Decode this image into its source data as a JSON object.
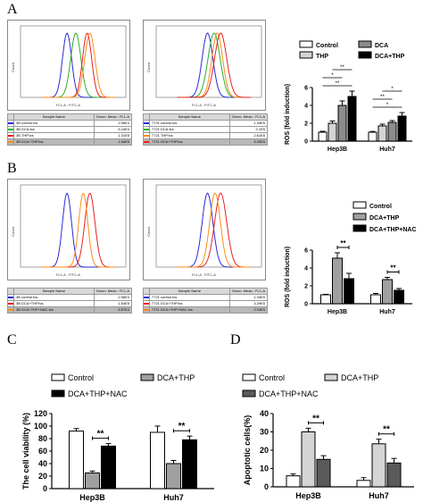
{
  "panels": {
    "A": "A",
    "B": "B",
    "C": "C",
    "D": "D"
  },
  "flow": {
    "axis_x": "FL1-A : FITC-A",
    "axis_y": "Count",
    "header_sample": "Sample Name",
    "header_geo": "Geom. Mean : FL1-A",
    "A_left": {
      "colors": [
        "#2a2ad6",
        "#2bb02b",
        "#e82020",
        "#ff8c1a"
      ],
      "rows": [
        {
          "name": "3B control.fcs",
          "value": "2.56E4"
        },
        {
          "name": "3B DCA.fcs",
          "value": "5.24E4"
        },
        {
          "name": "3B THP.fcs",
          "value": "1.31E5"
        },
        {
          "name": "3B DCA+THP.fcs",
          "value": "1.64E5"
        }
      ]
    },
    "A_right": {
      "colors": [
        "#2a2ad6",
        "#2bb02b",
        "#ff8c1a",
        "#e82020"
      ],
      "rows": [
        {
          "name": "7721 control.fcs",
          "value": "1.34E5"
        },
        {
          "name": "7721 DCA.fcs",
          "value": "2.1E5"
        },
        {
          "name": "7721 THP.fcs",
          "value": "2.61E5"
        },
        {
          "name": "7721 DCA+THP.fcs",
          "value": "3.29E5"
        }
      ]
    },
    "B_left": {
      "colors": [
        "#2a2ad6",
        "#e82020",
        "#ff8c1a"
      ],
      "rows": [
        {
          "name": "3B control.fcs",
          "value": "2.56E4"
        },
        {
          "name": "3B DCA+THP.fcs",
          "value": "1.64E5"
        },
        {
          "name": "3B DCA+THP+NAC.fcs",
          "value": "9.57E4"
        }
      ]
    },
    "B_right": {
      "colors": [
        "#2a2ad6",
        "#e82020",
        "#ff8c1a"
      ],
      "rows": [
        {
          "name": "7721 control.fcs",
          "value": "1.34E5"
        },
        {
          "name": "7721 DCA+THP.fcs",
          "value": "3.29E5"
        },
        {
          "name": "7721 DCA+THP+NAC.fcs",
          "value": "2.24E5"
        }
      ]
    }
  },
  "chart_data": [
    {
      "id": "A",
      "type": "bar",
      "ylabel": "ROS (fold induction)",
      "ylim": [
        0,
        6
      ],
      "yticks": [
        0,
        2,
        4,
        6
      ],
      "categories": [
        "Hep3B",
        "Huh7"
      ],
      "series": [
        {
          "name": "Control",
          "color": "#ffffff",
          "values": [
            1.0,
            1.0
          ],
          "errors": [
            0.1,
            0.08
          ]
        },
        {
          "name": "THP",
          "color": "#d4d4d4",
          "values": [
            2.0,
            1.7
          ],
          "errors": [
            0.25,
            0.2
          ]
        },
        {
          "name": "DCA",
          "color": "#8c8c8c",
          "values": [
            4.0,
            2.1
          ],
          "errors": [
            0.5,
            0.2
          ]
        },
        {
          "name": "DCA+THP",
          "color": "#000000",
          "values": [
            5.0,
            2.8
          ],
          "errors": [
            0.6,
            0.4
          ]
        }
      ],
      "legend_order": [
        "Control",
        "DCA",
        "THP",
        "DCA+THP"
      ],
      "significance": "**  *"
    },
    {
      "id": "B",
      "type": "bar",
      "ylabel": "ROS (fold induction)",
      "ylim": [
        0,
        6
      ],
      "yticks": [
        0,
        2,
        4,
        6
      ],
      "categories": [
        "Hep3B",
        "Huh7"
      ],
      "series": [
        {
          "name": "Control",
          "color": "#ffffff",
          "values": [
            1.0,
            1.0
          ],
          "errors": [
            0.05,
            0.15
          ]
        },
        {
          "name": "DCA+THP",
          "color": "#a0a0a0",
          "values": [
            5.1,
            2.7
          ],
          "errors": [
            0.6,
            0.25
          ]
        },
        {
          "name": "DCA+THP+NAC",
          "color": "#000000",
          "values": [
            2.8,
            1.5
          ],
          "errors": [
            0.6,
            0.2
          ]
        }
      ],
      "significance": "**"
    },
    {
      "id": "C",
      "type": "bar",
      "ylabel": "The cell viability (%)",
      "ylim": [
        0,
        120
      ],
      "yticks": [
        0,
        20,
        40,
        60,
        80,
        100,
        120
      ],
      "categories": [
        "Hep3B",
        "Huh7"
      ],
      "series": [
        {
          "name": "Control",
          "color": "#ffffff",
          "values": [
            92,
            90
          ],
          "errors": [
            4,
            10
          ]
        },
        {
          "name": "DCA+THP",
          "color": "#a0a0a0",
          "values": [
            25,
            40
          ],
          "errors": [
            3,
            5
          ]
        },
        {
          "name": "DCA+THP+NAC",
          "color": "#000000",
          "values": [
            68,
            78
          ],
          "errors": [
            4,
            6
          ]
        }
      ],
      "significance": "**"
    },
    {
      "id": "D",
      "type": "bar",
      "ylabel": "Apoptotic cells(%)",
      "ylim": [
        0,
        40
      ],
      "yticks": [
        0,
        10,
        20,
        30,
        40
      ],
      "categories": [
        "Hep3B",
        "Huh7"
      ],
      "series": [
        {
          "name": "Control",
          "color": "#ffffff",
          "values": [
            6,
            3.5
          ],
          "errors": [
            1,
            1.5
          ]
        },
        {
          "name": "DCA+THP",
          "color": "#d4d4d4",
          "values": [
            30,
            23.5
          ],
          "errors": [
            2,
            2.5
          ]
        },
        {
          "name": "DCA+THP+NAC",
          "color": "#5a5a5a",
          "values": [
            15,
            13
          ],
          "errors": [
            2,
            2.5
          ]
        }
      ],
      "significance": "**"
    }
  ]
}
